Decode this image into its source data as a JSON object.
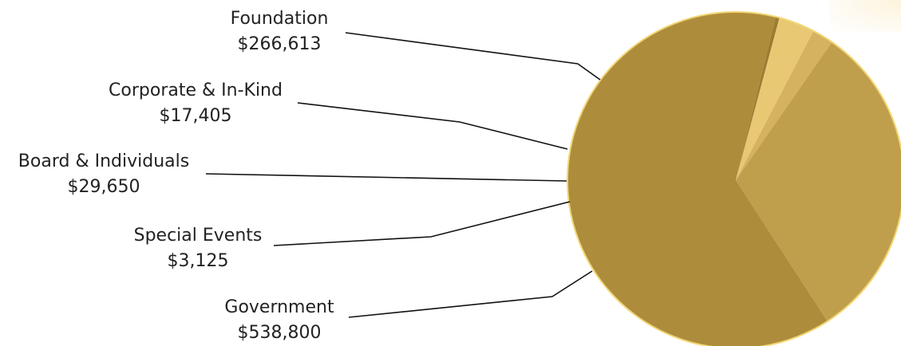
{
  "chart_data": {
    "type": "pie",
    "title": "",
    "slices": [
      {
        "name": "Government",
        "value": 538800,
        "value_label": "$538,800",
        "color": "#ad8d3b"
      },
      {
        "name": "Special Events",
        "value": 3125,
        "value_label": "$3,125",
        "color": "#9c7d30"
      },
      {
        "name": "Board & Individuals",
        "value": 29650,
        "value_label": "$29,650",
        "color": "#e8c873"
      },
      {
        "name": "Corporate & In-Kind",
        "value": 17405,
        "value_label": "$17,405",
        "color": "#d4b25f"
      },
      {
        "name": "Foundation",
        "value": 266613,
        "value_label": "$266,613",
        "color": "#c09f4c"
      }
    ],
    "outline_color": "#f2d675",
    "legend": "none"
  }
}
